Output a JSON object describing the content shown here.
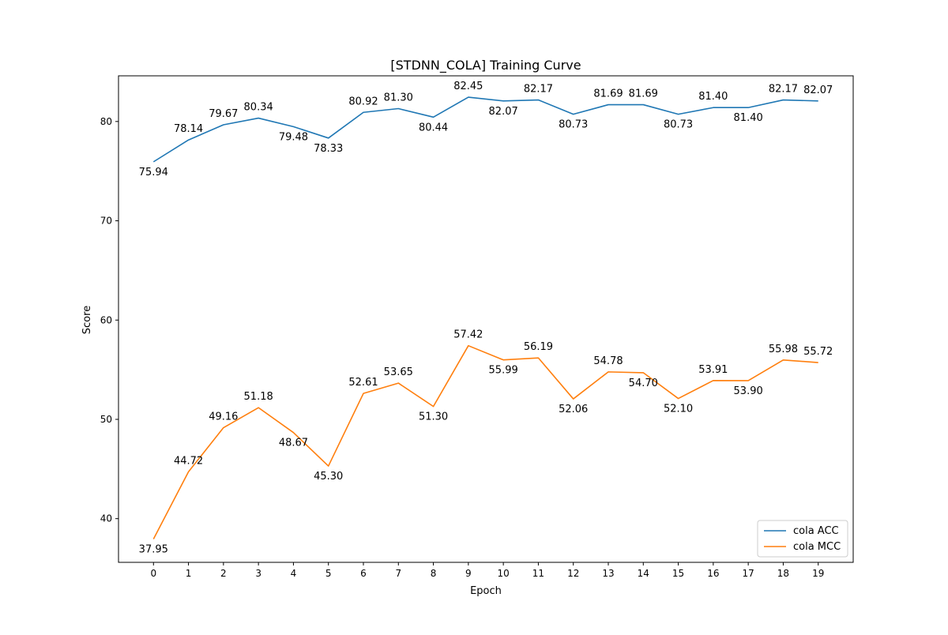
{
  "chart_data": {
    "type": "line",
    "title": "[STDNN_COLA] Training Curve",
    "xlabel": "Epoch",
    "ylabel": "Score",
    "x": [
      0,
      1,
      2,
      3,
      4,
      5,
      6,
      7,
      8,
      9,
      10,
      11,
      12,
      13,
      14,
      15,
      16,
      17,
      18,
      19
    ],
    "xlim": [
      -1,
      20
    ],
    "ylim": [
      35.6,
      84.6
    ],
    "xticks": [
      "0",
      "1",
      "2",
      "3",
      "4",
      "5",
      "6",
      "7",
      "8",
      "9",
      "10",
      "11",
      "12",
      "13",
      "14",
      "15",
      "16",
      "17",
      "18",
      "19"
    ],
    "yticks": [
      "40",
      "50",
      "60",
      "70",
      "80"
    ],
    "ytick_values": [
      40,
      50,
      60,
      70,
      80
    ],
    "grid": false,
    "legend_position": "lower-right",
    "series": [
      {
        "name": "cola ACC",
        "color": "#1f77b4",
        "values": [
          75.94,
          78.14,
          79.67,
          80.34,
          79.48,
          78.33,
          80.92,
          81.3,
          80.44,
          82.45,
          82.07,
          82.17,
          80.73,
          81.69,
          81.69,
          80.73,
          81.4,
          81.4,
          82.17,
          82.07
        ],
        "labels": [
          "75.94",
          "78.14",
          "79.67",
          "80.34",
          "79.48",
          "78.33",
          "80.92",
          "81.30",
          "80.44",
          "82.45",
          "82.07",
          "82.17",
          "80.73",
          "81.69",
          "81.69",
          "80.73",
          "81.40",
          "81.40",
          "82.17",
          "82.07"
        ]
      },
      {
        "name": "cola MCC",
        "color": "#ff7f0e",
        "values": [
          37.95,
          44.72,
          49.16,
          51.18,
          48.67,
          45.3,
          52.61,
          53.65,
          51.3,
          57.42,
          55.99,
          56.19,
          52.06,
          54.78,
          54.7,
          52.1,
          53.91,
          53.9,
          55.98,
          55.72
        ],
        "labels": [
          "37.95",
          "44.72",
          "49.16",
          "51.18",
          "48.67",
          "45.30",
          "52.61",
          "53.65",
          "51.30",
          "57.42",
          "55.99",
          "56.19",
          "52.06",
          "54.78",
          "54.70",
          "52.10",
          "53.91",
          "53.90",
          "55.98",
          "55.72"
        ]
      }
    ]
  }
}
